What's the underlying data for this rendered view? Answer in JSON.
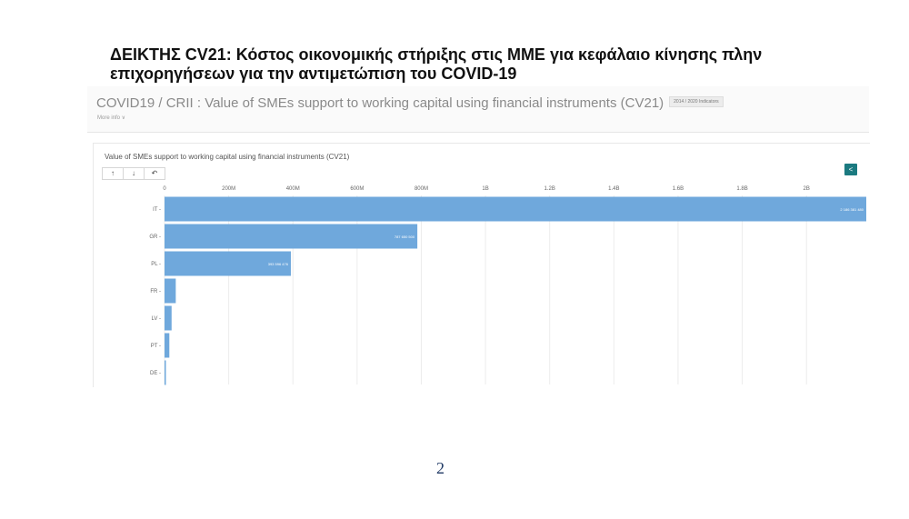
{
  "slide": {
    "title": "ΔΕΙΚΤΗΣ CV21: Κόστος οικονομικής στήριξης στις ΜΜΕ για κεφάλαιο κίνησης πλην επιχορηγήσεων για την αντιμετώπιση του COVID-19",
    "page_number": "2"
  },
  "panel": {
    "indicator_title": "COVID19 / CRII : Value of SMEs support to working capital using financial instruments (CV21)",
    "badge": "2014 / 2020 Indicators",
    "more_info": "More info ∨"
  },
  "toolbar": {
    "sort_asc": "↑",
    "sort_desc": "↓",
    "reset": "↶",
    "share": "<"
  },
  "colors": {
    "bar": "#6fa8dc",
    "share": "#1b7a80"
  },
  "chart_data": {
    "type": "bar",
    "orientation": "horizontal",
    "title": "Value of SMEs support to working capital using financial instruments (CV21)",
    "categories": [
      "IT",
      "GR",
      "PL",
      "FR",
      "LV",
      "PT",
      "DE"
    ],
    "values": [
      2186381480,
      787650500,
      393596476,
      35000000,
      22000000,
      15000000,
      2000000
    ],
    "data_labels": [
      "2 186 381 480",
      "787 650 500",
      "393 596 476",
      "",
      "",
      "",
      ""
    ],
    "x_ticks": [
      0,
      200000000,
      400000000,
      600000000,
      800000000,
      1000000000,
      1200000000,
      1400000000,
      1600000000,
      1800000000,
      2000000000
    ],
    "x_tick_labels": [
      "0",
      "200M",
      "400M",
      "600M",
      "800M",
      "1B",
      "1.2B",
      "1.4B",
      "1.6B",
      "1.8B",
      "2B"
    ],
    "xlim": [
      0,
      2186381480
    ],
    "grid": true
  }
}
